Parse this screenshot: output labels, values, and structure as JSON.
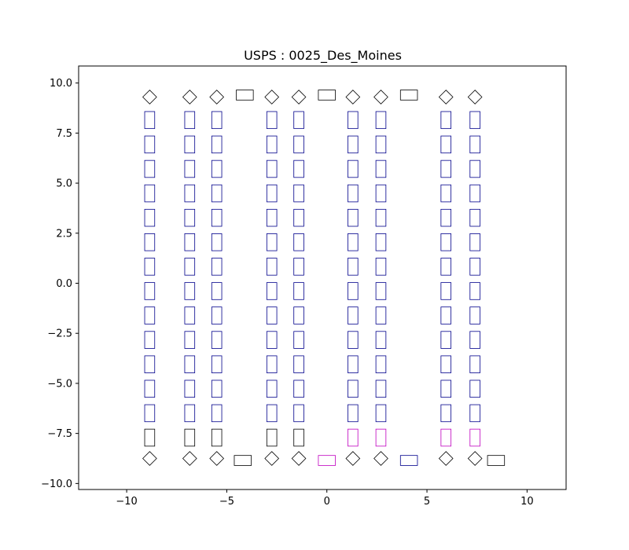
{
  "chart_data": {
    "type": "scatter",
    "title": "USPS : 0025_Des_Moines",
    "xlabel": "",
    "ylabel": "",
    "xlim": [
      -12.4,
      11.95
    ],
    "ylim": [
      -10.3,
      10.85
    ],
    "xticks": [
      -10,
      -5,
      0,
      5,
      10
    ],
    "yticks": [
      -10.0,
      -7.5,
      -5.0,
      -2.5,
      0.0,
      2.5,
      5.0,
      7.5,
      10.0
    ],
    "xtick_labels": [
      "−10",
      "−5",
      "0",
      "5",
      "10"
    ],
    "ytick_labels": [
      "−10.0",
      "−7.5",
      "−5.0",
      "−2.5",
      "0.0",
      "2.5",
      "5.0",
      "7.5",
      "10.0"
    ],
    "grid": false,
    "colors": {
      "black": "#000000",
      "blue": "#00008b",
      "magenta": "#c000c0"
    },
    "column_x": [
      -8.85,
      -6.85,
      -5.5,
      -2.75,
      -1.4,
      1.3,
      2.7,
      5.95,
      7.4
    ],
    "row_y": [
      8.15,
      6.93,
      5.71,
      4.49,
      3.27,
      2.05,
      0.83,
      -0.39,
      -1.61,
      -2.83,
      -4.05,
      -5.27,
      -6.49,
      -7.71
    ],
    "rect_w": 0.5,
    "rect_h": 0.85,
    "row_colors": [
      [
        "blue",
        "blue",
        "blue",
        "blue",
        "blue",
        "blue",
        "blue",
        "blue",
        "blue"
      ],
      [
        "blue",
        "blue",
        "blue",
        "blue",
        "blue",
        "blue",
        "blue",
        "blue",
        "blue"
      ],
      [
        "blue",
        "blue",
        "blue",
        "blue",
        "blue",
        "blue",
        "blue",
        "blue",
        "blue"
      ],
      [
        "blue",
        "blue",
        "blue",
        "blue",
        "blue",
        "blue",
        "blue",
        "blue",
        "blue"
      ],
      [
        "blue",
        "blue",
        "blue",
        "blue",
        "blue",
        "blue",
        "blue",
        "blue",
        "blue"
      ],
      [
        "blue",
        "blue",
        "blue",
        "blue",
        "blue",
        "blue",
        "blue",
        "blue",
        "blue"
      ],
      [
        "blue",
        "blue",
        "blue",
        "blue",
        "blue",
        "blue",
        "blue",
        "blue",
        "blue"
      ],
      [
        "blue",
        "blue",
        "blue",
        "blue",
        "blue",
        "blue",
        "blue",
        "blue",
        "blue"
      ],
      [
        "blue",
        "blue",
        "blue",
        "blue",
        "blue",
        "blue",
        "blue",
        "blue",
        "blue"
      ],
      [
        "blue",
        "blue",
        "blue",
        "blue",
        "blue",
        "blue",
        "blue",
        "blue",
        "blue"
      ],
      [
        "blue",
        "blue",
        "blue",
        "blue",
        "blue",
        "blue",
        "blue",
        "blue",
        "blue"
      ],
      [
        "blue",
        "blue",
        "blue",
        "blue",
        "blue",
        "blue",
        "blue",
        "blue",
        "blue"
      ],
      [
        "blue",
        "blue",
        "blue",
        "blue",
        "blue",
        "blue",
        "blue",
        "blue",
        "blue"
      ],
      [
        "black",
        "black",
        "black",
        "black",
        "black",
        "magenta",
        "magenta",
        "magenta",
        "magenta"
      ]
    ],
    "top_markers": [
      {
        "shape": "diamond",
        "x": -8.85,
        "y": 9.3,
        "color": "black"
      },
      {
        "shape": "diamond",
        "x": -6.85,
        "y": 9.3,
        "color": "black"
      },
      {
        "shape": "diamond",
        "x": -5.5,
        "y": 9.3,
        "color": "black"
      },
      {
        "shape": "hrect",
        "x": -4.1,
        "y": 9.4,
        "color": "black"
      },
      {
        "shape": "diamond",
        "x": -2.75,
        "y": 9.3,
        "color": "black"
      },
      {
        "shape": "diamond",
        "x": -1.4,
        "y": 9.3,
        "color": "black"
      },
      {
        "shape": "hrect",
        "x": 0.0,
        "y": 9.4,
        "color": "black"
      },
      {
        "shape": "diamond",
        "x": 1.3,
        "y": 9.3,
        "color": "black"
      },
      {
        "shape": "diamond",
        "x": 2.7,
        "y": 9.3,
        "color": "black"
      },
      {
        "shape": "hrect",
        "x": 4.1,
        "y": 9.4,
        "color": "black"
      },
      {
        "shape": "diamond",
        "x": 5.95,
        "y": 9.3,
        "color": "black"
      },
      {
        "shape": "diamond",
        "x": 7.4,
        "y": 9.3,
        "color": "black"
      }
    ],
    "bottom_markers": [
      {
        "shape": "diamond",
        "x": -8.85,
        "y": -8.75,
        "color": "black"
      },
      {
        "shape": "diamond",
        "x": -6.85,
        "y": -8.75,
        "color": "black"
      },
      {
        "shape": "diamond",
        "x": -5.5,
        "y": -8.75,
        "color": "black"
      },
      {
        "shape": "hrect",
        "x": -4.2,
        "y": -8.85,
        "color": "black"
      },
      {
        "shape": "diamond",
        "x": -2.75,
        "y": -8.75,
        "color": "black"
      },
      {
        "shape": "diamond",
        "x": -1.4,
        "y": -8.75,
        "color": "black"
      },
      {
        "shape": "hrect",
        "x": 0.0,
        "y": -8.85,
        "color": "magenta"
      },
      {
        "shape": "diamond",
        "x": 1.3,
        "y": -8.75,
        "color": "black"
      },
      {
        "shape": "diamond",
        "x": 2.7,
        "y": -8.75,
        "color": "black"
      },
      {
        "shape": "hrect",
        "x": 4.1,
        "y": -8.85,
        "color": "blue"
      },
      {
        "shape": "diamond",
        "x": 5.95,
        "y": -8.75,
        "color": "black"
      },
      {
        "shape": "diamond",
        "x": 7.4,
        "y": -8.75,
        "color": "black"
      },
      {
        "shape": "hrect",
        "x": 8.45,
        "y": -8.85,
        "color": "black"
      }
    ],
    "diamond_size": 0.6,
    "hrect_w": 0.85,
    "hrect_h": 0.5
  }
}
